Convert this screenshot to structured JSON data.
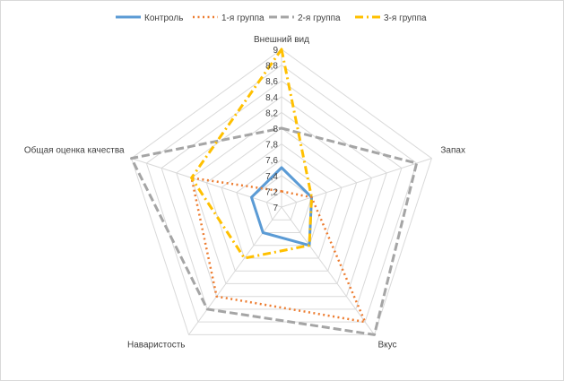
{
  "chart_data": {
    "type": "radar",
    "axes": [
      "Внешний вид",
      "Запах",
      "Вкус",
      "Наваристость",
      "Общая оценка качества"
    ],
    "rlim": [
      7,
      9
    ],
    "ticks": [
      "7",
      "7,2",
      "7,4",
      "7,6",
      "7,8",
      "8",
      "8,2",
      "8,4",
      "8,6",
      "8,8",
      "9"
    ],
    "tick_values": [
      7,
      7.2,
      7.4,
      7.6,
      7.8,
      8,
      8.2,
      8.4,
      8.6,
      8.8,
      9
    ],
    "grid": true,
    "legend_position": "top",
    "series": [
      {
        "name": "Контроль",
        "values": [
          7.5,
          7.4,
          7.6,
          7.4,
          7.4
        ],
        "color": "#5b9bd5",
        "dash": "solid"
      },
      {
        "name": "1-я группа",
        "values": [
          7.2,
          7.4,
          8.8,
          8.4,
          8.2
        ],
        "color": "#ed7d31",
        "dash": "dotted"
      },
      {
        "name": "2-я группа",
        "values": [
          8.0,
          8.8,
          9.0,
          8.6,
          9.0
        ],
        "color": "#a5a5a5",
        "dash": "dashed"
      },
      {
        "name": "3-я группа",
        "values": [
          9.0,
          7.4,
          7.6,
          7.8,
          8.2
        ],
        "color": "#ffc000",
        "dash": "dashdot"
      }
    ]
  }
}
